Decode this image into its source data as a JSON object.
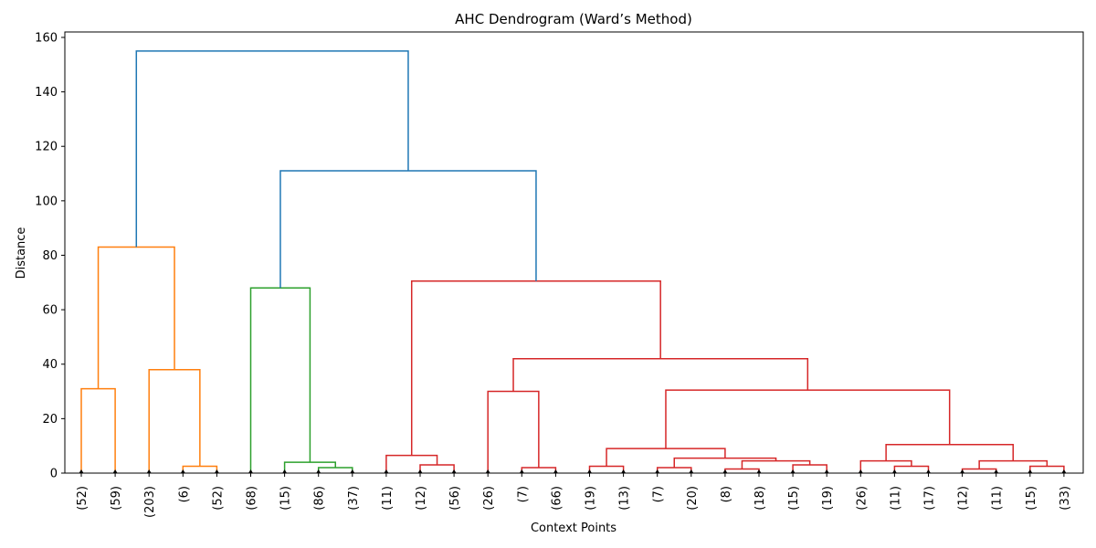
{
  "chart_data": {
    "type": "dendrogram",
    "title": "AHC Dendrogram (Ward’s Method)",
    "xlabel": "Context Points",
    "ylabel": "Distance",
    "ylim": [
      0,
      162
    ],
    "yticks": [
      0,
      20,
      40,
      60,
      80,
      100,
      120,
      140,
      160
    ],
    "grid": false,
    "leaves": [
      "(52)",
      "(59)",
      "(203)",
      "(6)",
      "(52)",
      "(68)",
      "(15)",
      "(86)",
      "(37)",
      "(11)",
      "(12)",
      "(56)",
      "(26)",
      "(7)",
      "(66)",
      "(19)",
      "(13)",
      "(7)",
      "(20)",
      "(8)",
      "(18)",
      "(15)",
      "(19)",
      "(26)",
      "(11)",
      "(17)",
      "(12)",
      "(11)",
      "(15)",
      "(33)"
    ],
    "merges": [
      {
        "left": "L0",
        "right": "L1",
        "height": 31,
        "color": "#ff7f0e"
      },
      {
        "left": "L3",
        "right": "L4",
        "height": 2.5,
        "color": "#ff7f0e"
      },
      {
        "left": "L2",
        "right": "M1",
        "height": 38,
        "color": "#ff7f0e"
      },
      {
        "left": "M0",
        "right": "M2",
        "height": 83,
        "color": "#ff7f0e"
      },
      {
        "left": "L7",
        "right": "L8",
        "height": 2,
        "color": "#2ca02c"
      },
      {
        "left": "L6",
        "right": "M4",
        "height": 4,
        "color": "#2ca02c"
      },
      {
        "left": "L5",
        "right": "M5",
        "height": 68,
        "color": "#2ca02c"
      },
      {
        "left": "L10",
        "right": "L11",
        "height": 3,
        "color": "#d62728"
      },
      {
        "left": "L9",
        "right": "M7",
        "height": 6.5,
        "color": "#d62728"
      },
      {
        "left": "L13",
        "right": "L14",
        "height": 2,
        "color": "#d62728"
      },
      {
        "left": "L12",
        "right": "M9",
        "height": 30,
        "color": "#d62728"
      },
      {
        "left": "L15",
        "right": "L16",
        "height": 2.5,
        "color": "#d62728"
      },
      {
        "left": "L17",
        "right": "L18",
        "height": 2,
        "color": "#d62728"
      },
      {
        "left": "L19",
        "right": "L20",
        "height": 1.5,
        "color": "#d62728"
      },
      {
        "left": "L21",
        "right": "L22",
        "height": 3,
        "color": "#d62728"
      },
      {
        "left": "M13",
        "right": "M14",
        "height": 4.5,
        "color": "#d62728"
      },
      {
        "left": "M12",
        "right": "M15",
        "height": 5.5,
        "color": "#d62728"
      },
      {
        "left": "M11",
        "right": "M16",
        "height": 9,
        "color": "#d62728"
      },
      {
        "left": "L24",
        "right": "L25",
        "height": 2.5,
        "color": "#d62728"
      },
      {
        "left": "L23",
        "right": "M18",
        "height": 4.5,
        "color": "#d62728"
      },
      {
        "left": "L26",
        "right": "L27",
        "height": 1.5,
        "color": "#d62728"
      },
      {
        "left": "L28",
        "right": "L29",
        "height": 2.5,
        "color": "#d62728"
      },
      {
        "left": "M20",
        "right": "M21",
        "height": 4.5,
        "color": "#d62728"
      },
      {
        "left": "M19",
        "right": "M22",
        "height": 10.5,
        "color": "#d62728"
      },
      {
        "left": "M17",
        "right": "M23",
        "height": 30.5,
        "color": "#d62728"
      },
      {
        "left": "M10",
        "right": "M24",
        "height": 42,
        "color": "#d62728"
      },
      {
        "left": "M8",
        "right": "M25",
        "height": 70.5,
        "color": "#d62728"
      },
      {
        "left": "M6",
        "right": "M26",
        "height": 111,
        "color": "#1f77b4"
      },
      {
        "left": "M3",
        "right": "M27",
        "height": 155,
        "color": "#1f77b4"
      }
    ]
  }
}
